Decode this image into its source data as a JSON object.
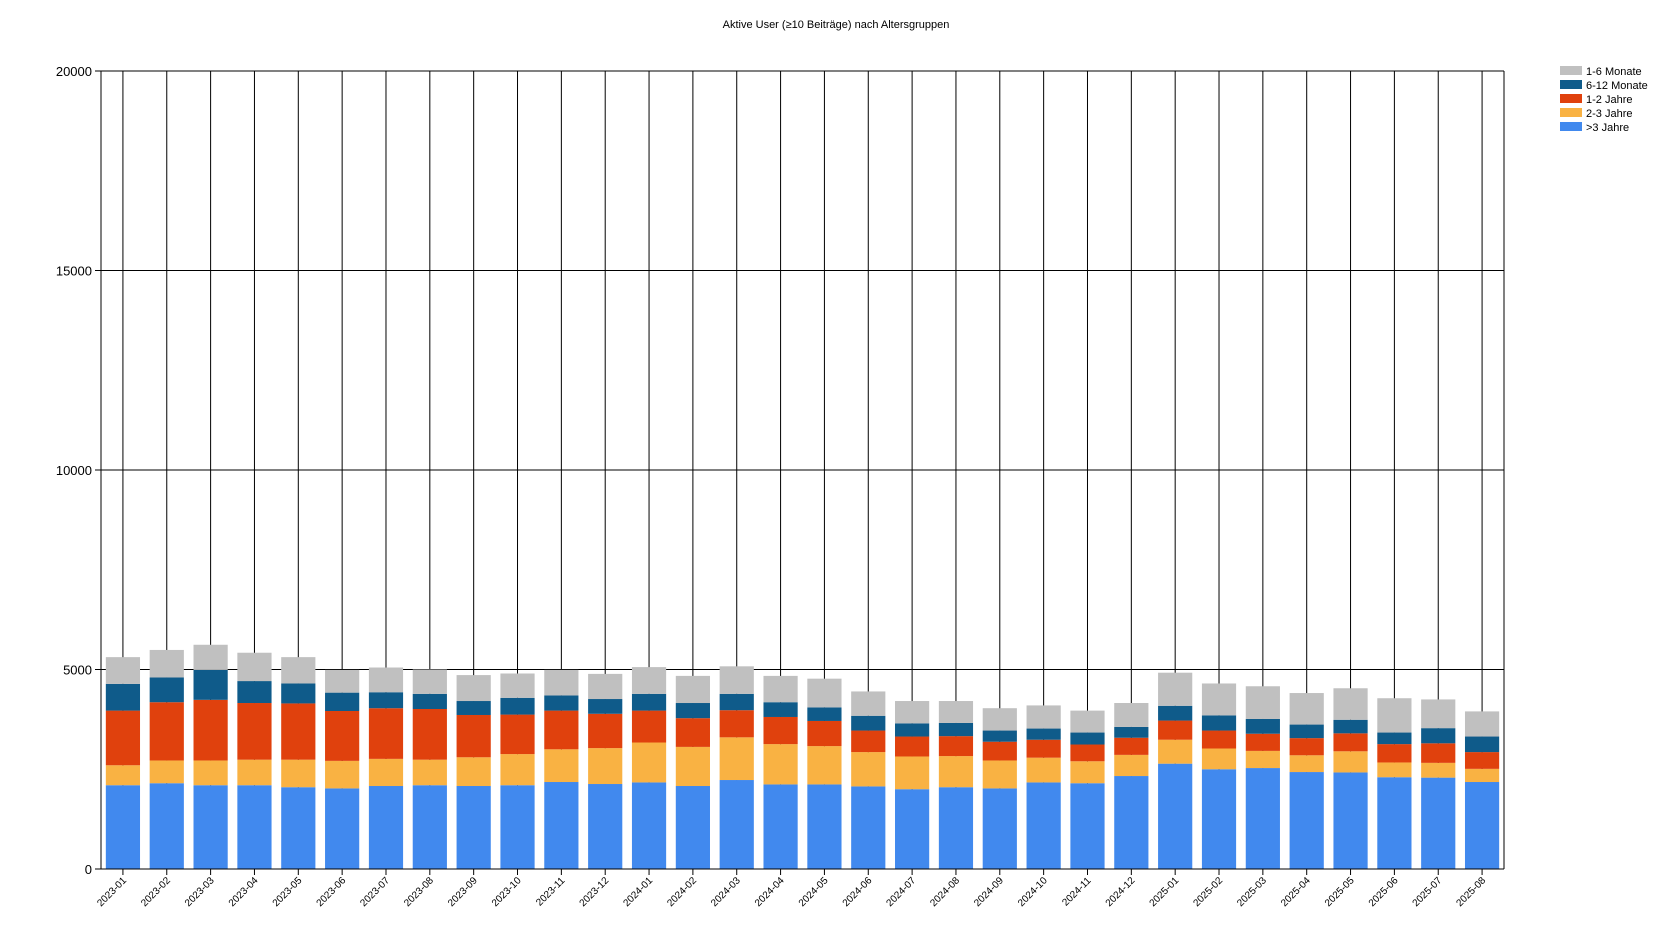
{
  "chart_data": {
    "type": "bar",
    "stacked": true,
    "title": "Aktive User (≥10 Beiträge) nach Altersgruppen",
    "xlabel": "",
    "ylabel": "",
    "ylim": [
      0,
      20000
    ],
    "yticks": [
      0,
      5000,
      10000,
      15000,
      20000
    ],
    "grid": true,
    "legend_position": "top-right",
    "categories": [
      "2023-01",
      "2023-02",
      "2023-03",
      "2023-04",
      "2023-05",
      "2023-06",
      "2023-07",
      "2023-08",
      "2023-09",
      "2023-10",
      "2023-11",
      "2023-12",
      "2024-01",
      "2024-02",
      "2024-03",
      "2024-04",
      "2024-05",
      "2024-06",
      "2024-07",
      "2024-08",
      "2024-09",
      "2024-10",
      "2024-11",
      "2024-12",
      "2025-01",
      "2025-02",
      "2025-03",
      "2025-04",
      "2025-05",
      "2025-06",
      "2025-07",
      "2025-08"
    ],
    "series": [
      {
        "name": ">3 Jahre",
        "color": "#4189ee",
        "values": [
          2100,
          2150,
          2100,
          2100,
          2050,
          2020,
          2080,
          2100,
          2080,
          2100,
          2180,
          2130,
          2170,
          2080,
          2230,
          2120,
          2120,
          2070,
          2000,
          2050,
          2020,
          2170,
          2150,
          2330,
          2640,
          2500,
          2530,
          2430,
          2420,
          2300,
          2290,
          2180
        ]
      },
      {
        "name": "2-3 Jahre",
        "color": "#f9b243",
        "values": [
          500,
          570,
          620,
          640,
          690,
          690,
          680,
          640,
          720,
          780,
          820,
          900,
          1000,
          980,
          1070,
          1010,
          960,
          860,
          820,
          780,
          700,
          620,
          550,
          530,
          600,
          520,
          430,
          420,
          530,
          370,
          370,
          330
        ]
      },
      {
        "name": "1-2 Jahre",
        "color": "#e0410d",
        "values": [
          1370,
          1460,
          1520,
          1420,
          1410,
          1250,
          1270,
          1270,
          1060,
          990,
          970,
          860,
          800,
          720,
          680,
          680,
          630,
          540,
          500,
          500,
          470,
          450,
          420,
          430,
          480,
          450,
          430,
          430,
          450,
          460,
          490,
          420
        ]
      },
      {
        "name": "6-12 Monate",
        "color": "#0f5b8a",
        "values": [
          670,
          620,
          750,
          550,
          500,
          460,
          400,
          380,
          350,
          420,
          380,
          370,
          420,
          380,
          410,
          370,
          340,
          370,
          330,
          330,
          280,
          280,
          300,
          270,
          370,
          380,
          370,
          340,
          340,
          290,
          380,
          390
        ]
      },
      {
        "name": "1-6 Monate",
        "color": "#c0c0c0",
        "values": [
          670,
          690,
          630,
          710,
          660,
          570,
          620,
          610,
          650,
          610,
          640,
          630,
          670,
          680,
          690,
          660,
          720,
          610,
          560,
          550,
          560,
          580,
          550,
          600,
          830,
          800,
          820,
          790,
          790,
          860,
          720,
          630
        ]
      }
    ]
  }
}
